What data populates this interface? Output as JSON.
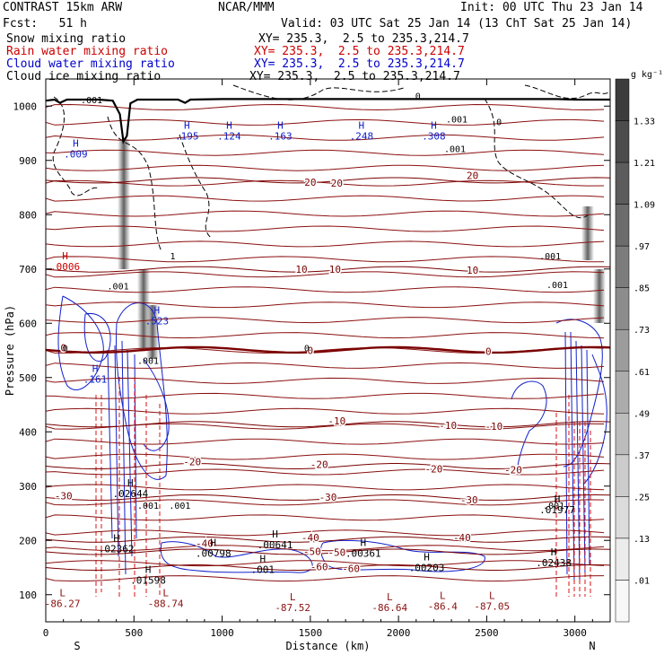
{
  "header": {
    "model": "CONTRAST 15km ARW",
    "center": "NCAR/MMM",
    "init": "Init: 00 UTC Thu 23 Jan 14",
    "fcst": "Fcst:   51 h",
    "valid": "Valid: 03 UTC Sat 25 Jan 14 (13 ChT Sat 25 Jan 14)"
  },
  "legend": [
    {
      "label": "Snow mixing ratio",
      "xy": "XY= 235.3,  2.5 to 235.3,214.7",
      "color": "#000000"
    },
    {
      "label": "Rain water mixing ratio",
      "xy": "XY= 235.3,  2.5 to 235.3,214.7",
      "color": "#cc0000"
    },
    {
      "label": "Cloud water mixing ratio",
      "xy": "XY= 235.3,  2.5 to 235.3,214.7",
      "color": "#0000cc"
    },
    {
      "label": "Cloud ice mixing ratio",
      "xy": "XY= 235.3,  2.5 to 235.3,214.7",
      "color": "#000000"
    }
  ],
  "colorbar": {
    "unit": "g kg⁻¹",
    "levels": [
      "1.33",
      "1.21",
      "1.09",
      ".97",
      ".85",
      ".73",
      ".61",
      ".49",
      ".37",
      ".25",
      ".13",
      ".01"
    ],
    "colors": [
      "#3c3c3c",
      "#4c4c4c",
      "#5c5c5c",
      "#6c6c6c",
      "#7c7c7c",
      "#8c8c8c",
      "#9c9c9c",
      "#acacac",
      "#bcbcbc",
      "#cccccc",
      "#dcdcdc",
      "#ececec",
      "#f8f8f8"
    ]
  },
  "chart_data": {
    "type": "cross-section",
    "xlabel": "Distance (km)",
    "ylabel": "Pressure (hPa)",
    "xlim": [
      0,
      3200
    ],
    "ylim": [
      1050,
      50
    ],
    "x_ticks": [
      0,
      500,
      1000,
      1500,
      2000,
      2500,
      3000
    ],
    "x_tick_labels": [
      "0",
      "500",
      "1000",
      "1500",
      "2000",
      "2500",
      "3000"
    ],
    "y_ticks": [
      100,
      200,
      300,
      400,
      500,
      600,
      700,
      800,
      900,
      1000
    ],
    "y_tick_labels": [
      "100",
      "200",
      "300",
      "400",
      "500",
      "600",
      "700",
      "800",
      "900",
      "1000"
    ],
    "end_labels": {
      "left": "S",
      "right": "N"
    },
    "temperature_contours": [
      {
        "value": -60,
        "label": "-60",
        "points": [
          [
            1550,
            152
          ],
          [
            1730,
            148
          ]
        ]
      },
      {
        "value": -50,
        "label": "-50",
        "points": [
          [
            1510,
            180
          ],
          [
            1650,
            178
          ]
        ]
      },
      {
        "value": -40,
        "label": "-40",
        "points": [
          [
            900,
            195
          ],
          [
            1500,
            205
          ],
          [
            2360,
            205
          ]
        ]
      },
      {
        "value": -30,
        "label": "-30",
        "points": [
          [
            100,
            282
          ],
          [
            1600,
            280
          ],
          [
            2400,
            275
          ]
        ]
      },
      {
        "value": -20,
        "label": "-20",
        "points": [
          [
            830,
            345
          ],
          [
            1550,
            340
          ],
          [
            2200,
            332
          ],
          [
            2650,
            330
          ]
        ]
      },
      {
        "value": -10,
        "label": "-10",
        "points": [
          [
            1650,
            420
          ],
          [
            2280,
            412
          ],
          [
            2540,
            410
          ]
        ]
      },
      {
        "value": 0,
        "label": "0",
        "points": [
          [
            100,
            555
          ],
          [
            1500,
            550
          ],
          [
            2510,
            548
          ]
        ]
      },
      {
        "value": 10,
        "label": "10",
        "points": [
          [
            1450,
            700
          ],
          [
            1640,
            700
          ],
          [
            2420,
            698
          ]
        ]
      },
      {
        "value": 20,
        "label": "20",
        "points": [
          [
            1500,
            860
          ],
          [
            1650,
            858
          ],
          [
            2420,
            872
          ]
        ]
      }
    ],
    "max_labels": [
      {
        "sym": "L",
        "val": "-86.27",
        "x": 95,
        "p": 97
      },
      {
        "sym": "L",
        "val": "-88.74",
        "x": 680,
        "p": 97
      },
      {
        "sym": "L",
        "val": "-87.52",
        "x": 1400,
        "p": 90
      },
      {
        "sym": "L",
        "val": "-86.64",
        "x": 1950,
        "p": 90
      },
      {
        "sym": "L",
        "val": "-86.4",
        "x": 2250,
        "p": 92
      },
      {
        "sym": "L",
        "val": "-87.05",
        "x": 2530,
        "p": 92
      },
      {
        "sym": "H",
        "val": ".01598",
        "x": 580,
        "p": 140
      },
      {
        "sym": "H",
        "val": ".001",
        "x": 1230,
        "p": 160
      },
      {
        "sym": "H",
        "val": ".00798",
        "x": 950,
        "p": 190
      },
      {
        "sym": "H",
        "val": ".00641",
        "x": 1300,
        "p": 205
      },
      {
        "sym": "H",
        "val": ".00361",
        "x": 1800,
        "p": 190
      },
      {
        "sym": "H",
        "val": ".00203",
        "x": 2160,
        "p": 163
      },
      {
        "sym": "H",
        "val": ".02438",
        "x": 2880,
        "p": 172
      },
      {
        "sym": "H",
        "val": ".02362",
        "x": 400,
        "p": 198
      },
      {
        "sym": "H",
        "val": ".02644",
        "x": 480,
        "p": 300
      },
      {
        "sym": "H",
        "val": ".01977",
        "x": 2900,
        "p": 270
      },
      {
        "sym": "H",
        "val": ".161",
        "x": 280,
        "p": 510
      },
      {
        "sym": "H",
        "val": ".523",
        "x": 630,
        "p": 618
      },
      {
        "sym": "H",
        "val": ".009",
        "x": 170,
        "p": 925
      },
      {
        "sym": "H",
        "val": ".195",
        "x": 800,
        "p": 958
      },
      {
        "sym": "H",
        "val": ".124",
        "x": 1040,
        "p": 958
      },
      {
        "sym": "H",
        "val": ".163",
        "x": 1330,
        "p": 958
      },
      {
        "sym": "H",
        "val": ".248",
        "x": 1790,
        "p": 958
      },
      {
        "sym": "H",
        "val": ".308",
        "x": 2200,
        "p": 958
      },
      {
        "sym": "H",
        "val": ".0006",
        "x": 110,
        "p": 718
      }
    ],
    "small_labels": [
      {
        "val": ".001",
        "x": 580,
        "p": 258
      },
      {
        "val": ".001",
        "x": 760,
        "p": 258
      },
      {
        "val": ".001",
        "x": 2880,
        "p": 258
      },
      {
        "val": ".001",
        "x": 580,
        "p": 525
      },
      {
        "val": ".001",
        "x": 410,
        "p": 662
      },
      {
        "val": ".001",
        "x": 2900,
        "p": 665
      },
      {
        "val": ".001",
        "x": 2860,
        "p": 718
      },
      {
        "val": ".001",
        "x": 260,
        "p": 1005
      },
      {
        "val": ".001",
        "x": 2320,
        "p": 915
      },
      {
        "val": ".001",
        "x": 2330,
        "p": 970
      },
      {
        "val": "0",
        "x": 110,
        "p": 548
      },
      {
        "val": "0",
        "x": 1480,
        "p": 548
      },
      {
        "val": "0",
        "x": 2110,
        "p": 1013
      },
      {
        "val": "1",
        "x": 720,
        "p": 718
      },
      {
        "val": "0",
        "x": 2570,
        "p": 965
      }
    ],
    "terrain": [
      [
        0,
        1010
      ],
      [
        50,
        1012
      ],
      [
        80,
        1006
      ],
      [
        120,
        1012
      ],
      [
        300,
        1012
      ],
      [
        380,
        1010
      ],
      [
        420,
        985
      ],
      [
        440,
        935
      ],
      [
        460,
        945
      ],
      [
        480,
        1005
      ],
      [
        520,
        1012
      ],
      [
        750,
        1012
      ],
      [
        790,
        1006
      ],
      [
        820,
        1012
      ],
      [
        1000,
        1013
      ],
      [
        2000,
        1013
      ],
      [
        2900,
        1013
      ],
      [
        3000,
        1012
      ],
      [
        3200,
        1012
      ]
    ]
  }
}
